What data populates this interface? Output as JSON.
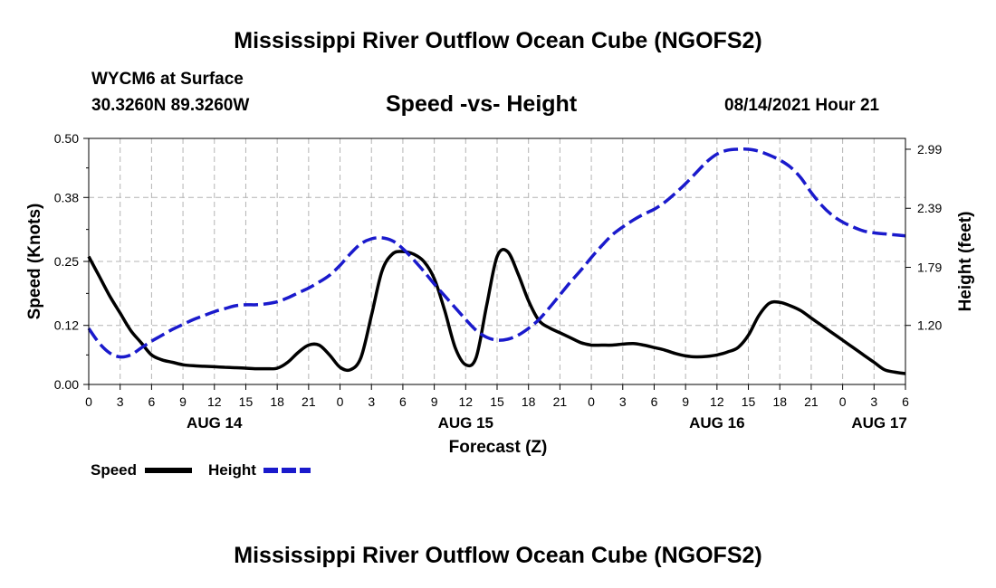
{
  "page": {
    "title_top": "Mississippi River Outflow Ocean Cube (NGOFS2)",
    "title_bottom": "Mississippi River Outflow Ocean Cube (NGOFS2)",
    "station": "WYCM6 at Surface",
    "coords": "30.3260N  89.3260W",
    "chart_heading": "Speed -vs- Height",
    "datetime": "08/14/2021 Hour 21"
  },
  "colors": {
    "speed": "#000000",
    "height": "#1a1acc",
    "grid": "#b4b4b4",
    "axis": "#000000"
  },
  "chart_data": {
    "type": "line",
    "title": "Speed -vs- Height",
    "xlabel": "Forecast (Z)",
    "ylabel": "Speed (Knots)",
    "y2label": "Height (feet)",
    "x_unit": "hours since 00Z AUG 14",
    "xlim": [
      0,
      78
    ],
    "ylim": [
      0,
      0.5
    ],
    "y2lim": [
      0.6,
      3.1
    ],
    "x_ticks": [
      0,
      3,
      6,
      9,
      12,
      15,
      18,
      21,
      24,
      27,
      30,
      33,
      36,
      39,
      42,
      45,
      48,
      51,
      54,
      57,
      60,
      63,
      66,
      69,
      72,
      75,
      78
    ],
    "x_tick_labels": [
      "0",
      "3",
      "6",
      "9",
      "12",
      "15",
      "18",
      "21",
      "0",
      "3",
      "6",
      "9",
      "12",
      "15",
      "18",
      "21",
      "0",
      "3",
      "6",
      "9",
      "12",
      "15",
      "18",
      "21",
      "0",
      "3",
      "6"
    ],
    "day_labels": [
      {
        "x": 12,
        "label": "AUG 14"
      },
      {
        "x": 36,
        "label": "AUG 15"
      },
      {
        "x": 60,
        "label": "AUG 16"
      },
      {
        "x": 75.5,
        "label": "AUG 17"
      }
    ],
    "y_ticks": [
      0.0,
      0.12,
      0.25,
      0.38,
      0.5
    ],
    "y_tick_labels": [
      "0.00",
      "0.12",
      "0.25",
      "0.38",
      "0.50"
    ],
    "y2_ticks": [
      1.2,
      1.79,
      2.39,
      2.99
    ],
    "y2_tick_labels": [
      "1.20",
      "1.79",
      "2.39",
      "2.99"
    ],
    "grid": true,
    "series": [
      {
        "name": "Speed",
        "axis": "left",
        "style": "solid",
        "x": [
          0,
          1,
          2,
          3,
          4,
          5,
          6,
          7,
          8,
          9,
          10,
          11,
          12,
          13,
          14,
          15,
          16,
          17,
          18,
          19,
          20,
          21,
          22,
          23,
          24,
          25,
          26,
          27,
          28,
          29,
          30,
          31,
          32,
          33,
          34,
          35,
          36,
          37,
          38,
          39,
          40,
          41,
          42,
          43,
          44,
          45,
          46,
          47,
          48,
          49,
          50,
          51,
          52,
          53,
          54,
          55,
          56,
          57,
          58,
          59,
          60,
          61,
          62,
          63,
          64,
          65,
          66,
          67,
          68,
          69,
          70,
          71,
          72,
          73,
          74,
          75,
          76,
          77,
          78
        ],
        "y": [
          0.26,
          0.22,
          0.18,
          0.145,
          0.11,
          0.085,
          0.06,
          0.05,
          0.045,
          0.04,
          0.038,
          0.037,
          0.036,
          0.035,
          0.034,
          0.033,
          0.032,
          0.032,
          0.033,
          0.045,
          0.065,
          0.08,
          0.08,
          0.06,
          0.035,
          0.03,
          0.055,
          0.14,
          0.23,
          0.265,
          0.27,
          0.265,
          0.25,
          0.215,
          0.15,
          0.075,
          0.04,
          0.055,
          0.16,
          0.26,
          0.27,
          0.225,
          0.17,
          0.13,
          0.115,
          0.105,
          0.095,
          0.085,
          0.08,
          0.08,
          0.08,
          0.082,
          0.083,
          0.08,
          0.075,
          0.07,
          0.063,
          0.058,
          0.056,
          0.057,
          0.06,
          0.066,
          0.075,
          0.1,
          0.14,
          0.165,
          0.167,
          0.16,
          0.15,
          0.135,
          0.12,
          0.105,
          0.09,
          0.075,
          0.06,
          0.045,
          0.03,
          0.025,
          0.022
        ]
      },
      {
        "name": "Height",
        "axis": "right",
        "style": "dashed",
        "x": [
          0,
          1,
          2,
          3,
          4,
          5,
          6,
          7,
          8,
          9,
          10,
          11,
          12,
          13,
          14,
          15,
          16,
          17,
          18,
          19,
          20,
          21,
          22,
          23,
          24,
          25,
          26,
          27,
          28,
          29,
          30,
          31,
          32,
          33,
          34,
          35,
          36,
          37,
          38,
          39,
          40,
          41,
          42,
          43,
          44,
          45,
          46,
          47,
          48,
          49,
          50,
          51,
          52,
          53,
          54,
          55,
          56,
          57,
          58,
          59,
          60,
          61,
          62,
          63,
          64,
          65,
          66,
          67,
          68,
          69,
          70,
          71,
          72,
          73,
          74,
          75,
          76,
          77,
          78
        ],
        "y": [
          1.17,
          1.02,
          0.92,
          0.88,
          0.9,
          0.97,
          1.04,
          1.1,
          1.16,
          1.21,
          1.26,
          1.3,
          1.34,
          1.37,
          1.4,
          1.41,
          1.41,
          1.42,
          1.44,
          1.48,
          1.53,
          1.58,
          1.64,
          1.71,
          1.81,
          1.93,
          2.03,
          2.08,
          2.09,
          2.06,
          1.98,
          1.87,
          1.75,
          1.62,
          1.5,
          1.38,
          1.26,
          1.15,
          1.08,
          1.05,
          1.06,
          1.1,
          1.17,
          1.26,
          1.38,
          1.51,
          1.64,
          1.76,
          1.89,
          2.01,
          2.12,
          2.2,
          2.27,
          2.33,
          2.38,
          2.45,
          2.54,
          2.64,
          2.75,
          2.86,
          2.94,
          2.98,
          2.99,
          2.99,
          2.97,
          2.93,
          2.88,
          2.81,
          2.7,
          2.55,
          2.42,
          2.32,
          2.25,
          2.2,
          2.16,
          2.14,
          2.13,
          2.12,
          2.11
        ]
      }
    ],
    "legend": [
      {
        "label": "Speed",
        "series": 0
      },
      {
        "label": "Height",
        "series": 1
      }
    ]
  }
}
